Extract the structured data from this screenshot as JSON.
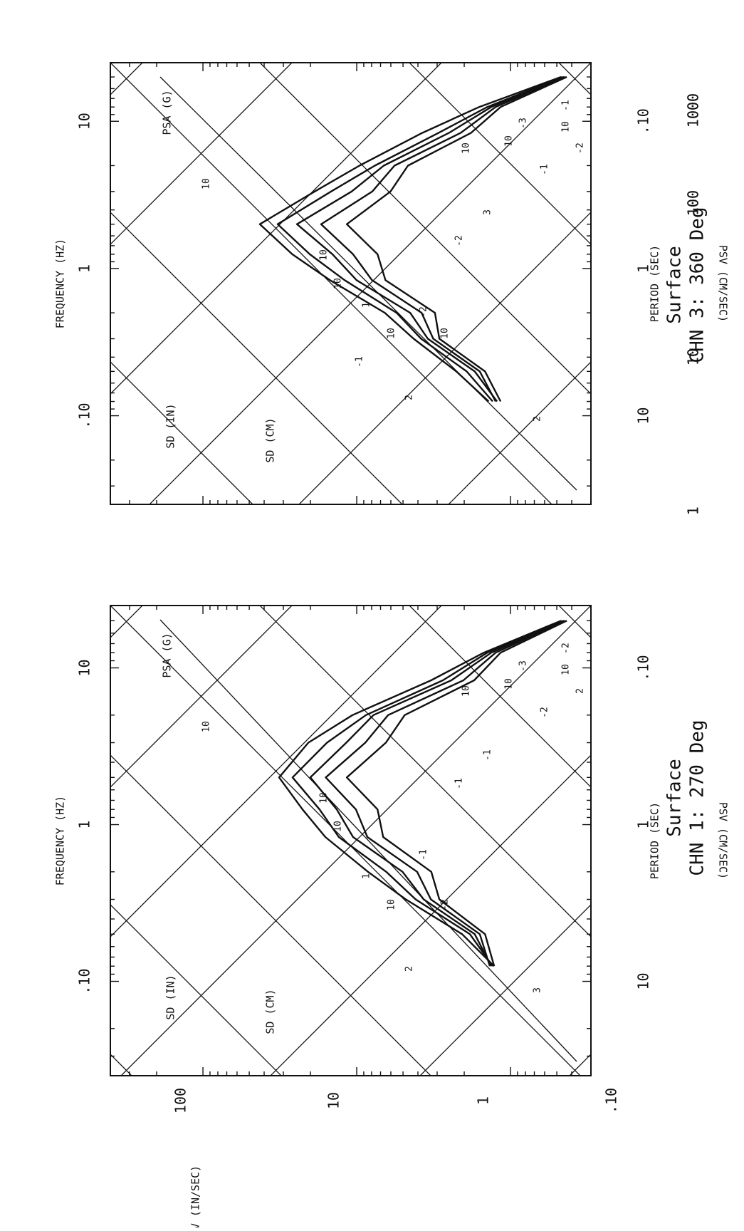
{
  "chart_data": [
    {
      "type": "line",
      "title": "CHN 3: 360 Deg",
      "subtitle": "Surface",
      "xlabel": "PERIOD (SEC)",
      "xlabel_top": "FREQUENCY (HZ)",
      "ylabel": "PSV (CM/SEC)",
      "y_scale": "log",
      "x_scale": "log",
      "xlim": [
        0.04,
        40
      ],
      "ylim": [
        0.3,
        400
      ],
      "x_ticks": [
        ".10",
        "1",
        "10"
      ],
      "freq_ticks": [
        "10",
        "1",
        ".10"
      ],
      "y_ticks": [
        "1000",
        "100",
        "10",
        "1"
      ],
      "diag_labels": [
        "PSA (G)",
        "SD (IN)",
        "SD (CM)",
        "10",
        "1",
        "10",
        "10",
        "10",
        "10",
        "10",
        "10",
        "10",
        "-1",
        "-2",
        "-2",
        "-3",
        "-1",
        "-2",
        "2",
        "2",
        "3",
        "-1"
      ],
      "series": [
        {
          "x": [
            0.05,
            0.08,
            0.12,
            0.2,
            0.3,
            0.5,
            0.8,
            1.2,
            2,
            3,
            5,
            8
          ],
          "y": [
            0.5,
            1.5,
            4,
            9,
            20,
            40,
            28,
            14,
            7,
            4,
            2.4,
            1.3
          ]
        },
        {
          "x": [
            0.05,
            0.08,
            0.12,
            0.2,
            0.3,
            0.5,
            0.8,
            1.2,
            2,
            3,
            5,
            8
          ],
          "y": [
            0.5,
            1.3,
            3.2,
            7,
            16,
            30,
            22,
            11,
            6,
            3.5,
            2.1,
            1.2
          ]
        },
        {
          "x": [
            0.05,
            0.08,
            0.12,
            0.2,
            0.3,
            0.5,
            0.8,
            1.2,
            2,
            3,
            5,
            8
          ],
          "y": [
            0.5,
            1.2,
            2.8,
            6,
            12,
            22,
            16,
            9,
            5,
            3.1,
            1.9,
            1.1
          ]
        },
        {
          "x": [
            0.05,
            0.08,
            0.12,
            0.2,
            0.3,
            0.5,
            0.8,
            1.2,
            2,
            3,
            5,
            8
          ],
          "y": [
            0.5,
            1.1,
            2.4,
            5,
            9,
            15,
            12,
            7,
            4.3,
            2.8,
            1.8,
            1.1
          ]
        },
        {
          "x": [
            0.05,
            0.08,
            0.12,
            0.2,
            0.3,
            0.5,
            0.8,
            1.2,
            2,
            3,
            5,
            8
          ],
          "y": [
            0.5,
            1.0,
            2.1,
            4,
            7,
            10,
            8.5,
            5.6,
            3.6,
            2.5,
            1.7,
            1.0
          ]
        }
      ]
    },
    {
      "type": "line",
      "title": "CHN 1: 270 Deg",
      "subtitle": "Surface",
      "xlabel": "PERIOD (SEC)",
      "xlabel_top": "FREQUENCY (HZ)",
      "ylabel": "PSV (CM/SEC)",
      "ylabel_left": "PSV (IN/SEC)",
      "y_scale": "log",
      "x_scale": "log",
      "xlim": [
        0.04,
        40
      ],
      "ylim": [
        0.3,
        400
      ],
      "x_ticks": [
        ".10",
        "1",
        "10"
      ],
      "freq_ticks": [
        "10",
        "1",
        ".10"
      ],
      "y_ticks": [
        "1000",
        "100",
        "10",
        "1"
      ],
      "y_ticks_left": [
        "100",
        "10",
        "1",
        ".10"
      ],
      "diag_labels": [
        "PSA (G)",
        "SD (IN)",
        "SD (CM)",
        "10",
        "1",
        "10",
        "10",
        "10",
        "10",
        "10",
        "10",
        "-2",
        "-2",
        "-1",
        "-1",
        "-3",
        "-2",
        "2",
        "2",
        "3",
        "-1"
      ],
      "series": [
        {
          "x": [
            0.05,
            0.08,
            0.12,
            0.2,
            0.3,
            0.5,
            0.8,
            1.2,
            2,
            3,
            5,
            8
          ],
          "y": [
            0.5,
            1.4,
            3.5,
            10,
            22,
            30,
            24,
            15,
            9,
            4.5,
            2.2,
            1.2
          ]
        },
        {
          "x": [
            0.05,
            0.08,
            0.12,
            0.2,
            0.3,
            0.5,
            0.8,
            1.2,
            2,
            3,
            5,
            8
          ],
          "y": [
            0.5,
            1.3,
            3.0,
            8,
            17,
            24,
            19,
            12,
            7,
            3.8,
            2.0,
            1.2
          ]
        },
        {
          "x": [
            0.05,
            0.08,
            0.12,
            0.2,
            0.3,
            0.5,
            0.8,
            1.2,
            2,
            3,
            5,
            8
          ],
          "y": [
            0.5,
            1.2,
            2.7,
            7,
            13,
            18,
            15,
            9.5,
            5.6,
            3.3,
            1.9,
            1.2
          ]
        },
        {
          "x": [
            0.05,
            0.08,
            0.12,
            0.2,
            0.3,
            0.5,
            0.8,
            1.2,
            2,
            3,
            5,
            8
          ],
          "y": [
            0.5,
            1.1,
            2.3,
            5.5,
            10,
            14,
            11.5,
            7.5,
            4.6,
            2.9,
            1.8,
            1.2
          ]
        },
        {
          "x": [
            0.05,
            0.08,
            0.12,
            0.2,
            0.3,
            0.5,
            0.8,
            1.2,
            2,
            3,
            5,
            8
          ],
          "y": [
            0.5,
            1.0,
            2.0,
            4.2,
            7.5,
            10,
            8.5,
            5.8,
            3.8,
            2.5,
            1.7,
            1.1
          ]
        }
      ]
    }
  ]
}
